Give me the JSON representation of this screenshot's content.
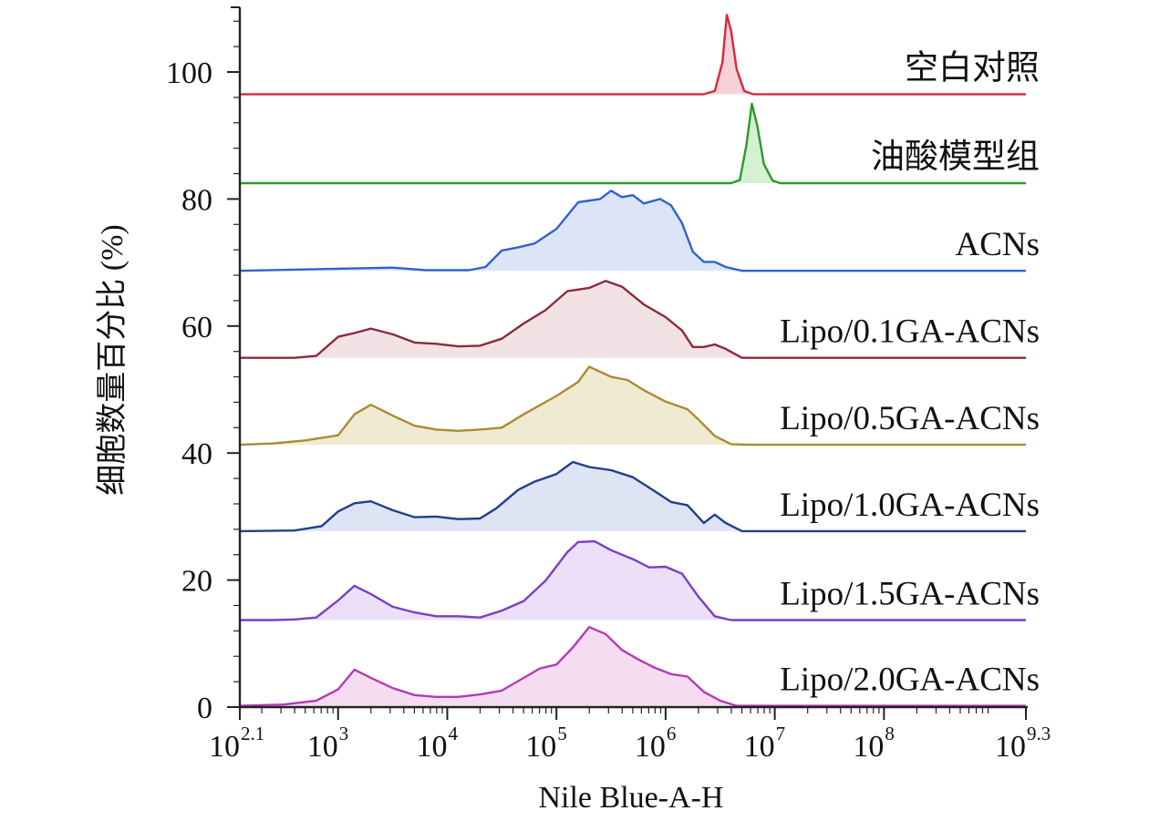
{
  "chart_data": {
    "type": "area",
    "title": "",
    "xlabel": "Nile Blue-A-H",
    "ylabel": "细胞数量百分比 (%)",
    "x_scale": "log10",
    "xlim": [
      2.1,
      9.3
    ],
    "ylim": [
      0,
      110
    ],
    "x_ticks": [
      {
        "base": "10",
        "exp": "2.1",
        "value": 2.1
      },
      {
        "base": "10",
        "exp": "3",
        "value": 3
      },
      {
        "base": "10",
        "exp": "4",
        "value": 4
      },
      {
        "base": "10",
        "exp": "5",
        "value": 5
      },
      {
        "base": "10",
        "exp": "6",
        "value": 6
      },
      {
        "base": "10",
        "exp": "7",
        "value": 7
      },
      {
        "base": "10",
        "exp": "8",
        "value": 8
      },
      {
        "base": "10",
        "exp": "9.3",
        "value": 9.3
      }
    ],
    "y_ticks": [
      0,
      20,
      40,
      60,
      80,
      100
    ],
    "grid": false,
    "legend": "series labels placed at right of each trace",
    "series": [
      {
        "name": "空白对照",
        "color": "#d6293c",
        "fill": "#f6c9d1",
        "baseline": 96.5,
        "points": [
          [
            2.1,
            0
          ],
          [
            6.35,
            0
          ],
          [
            6.45,
            0.5
          ],
          [
            6.52,
            5
          ],
          [
            6.56,
            12.5
          ],
          [
            6.6,
            10
          ],
          [
            6.65,
            4
          ],
          [
            6.72,
            0.5
          ],
          [
            6.8,
            0
          ],
          [
            9.3,
            0
          ]
        ]
      },
      {
        "name": "油酸模型组",
        "color": "#2b9a2b",
        "fill": "#cdeecb",
        "baseline": 82.5,
        "points": [
          [
            2.1,
            0
          ],
          [
            6.6,
            0
          ],
          [
            6.68,
            0.5
          ],
          [
            6.74,
            6
          ],
          [
            6.79,
            12.5
          ],
          [
            6.84,
            9
          ],
          [
            6.9,
            3
          ],
          [
            6.98,
            0.4
          ],
          [
            7.05,
            0
          ],
          [
            9.3,
            0
          ]
        ]
      },
      {
        "name": "ACNs",
        "color": "#2e63cf",
        "fill": "#d6e1f6",
        "baseline": 68.7,
        "points": [
          [
            2.1,
            0
          ],
          [
            3.2,
            0.4
          ],
          [
            3.5,
            0.5
          ],
          [
            3.8,
            0.1
          ],
          [
            4.2,
            0.1
          ],
          [
            4.35,
            0.6
          ],
          [
            4.5,
            3.2
          ],
          [
            4.65,
            3.7
          ],
          [
            4.8,
            4.3
          ],
          [
            5.0,
            6.6
          ],
          [
            5.2,
            10.8
          ],
          [
            5.4,
            11.3
          ],
          [
            5.5,
            12.6
          ],
          [
            5.6,
            11.6
          ],
          [
            5.7,
            11.9
          ],
          [
            5.8,
            10.6
          ],
          [
            5.95,
            11.3
          ],
          [
            6.05,
            10.3
          ],
          [
            6.15,
            7.5
          ],
          [
            6.25,
            3.0
          ],
          [
            6.35,
            1.4
          ],
          [
            6.45,
            1.4
          ],
          [
            6.55,
            0.6
          ],
          [
            6.7,
            0
          ],
          [
            9.3,
            0
          ]
        ]
      },
      {
        "name": "Lipo/0.1GA-ACNs",
        "color": "#8c2a3a",
        "fill": "#f0dde0",
        "baseline": 55.0,
        "points": [
          [
            2.1,
            0
          ],
          [
            2.6,
            0
          ],
          [
            2.8,
            0.3
          ],
          [
            3.0,
            3.3
          ],
          [
            3.15,
            3.9
          ],
          [
            3.3,
            4.6
          ],
          [
            3.5,
            3.7
          ],
          [
            3.7,
            2.4
          ],
          [
            3.9,
            2.2
          ],
          [
            4.1,
            1.8
          ],
          [
            4.3,
            1.9
          ],
          [
            4.5,
            3.0
          ],
          [
            4.7,
            5.4
          ],
          [
            4.9,
            7.5
          ],
          [
            5.1,
            10.5
          ],
          [
            5.3,
            11.0
          ],
          [
            5.45,
            12.1
          ],
          [
            5.6,
            11.2
          ],
          [
            5.8,
            8.4
          ],
          [
            6.0,
            6.4
          ],
          [
            6.15,
            4.3
          ],
          [
            6.25,
            1.7
          ],
          [
            6.35,
            1.7
          ],
          [
            6.45,
            2.1
          ],
          [
            6.55,
            1.4
          ],
          [
            6.7,
            0
          ],
          [
            9.3,
            0
          ]
        ]
      },
      {
        "name": "Lipo/0.5GA-ACNs",
        "color": "#a98c33",
        "fill": "#efe6cb",
        "baseline": 41.3,
        "points": [
          [
            2.1,
            0
          ],
          [
            2.4,
            0.2
          ],
          [
            2.7,
            0.7
          ],
          [
            3.0,
            1.5
          ],
          [
            3.15,
            4.8
          ],
          [
            3.3,
            6.3
          ],
          [
            3.5,
            4.6
          ],
          [
            3.7,
            3.0
          ],
          [
            3.9,
            2.4
          ],
          [
            4.1,
            2.2
          ],
          [
            4.3,
            2.4
          ],
          [
            4.5,
            2.7
          ],
          [
            4.7,
            4.8
          ],
          [
            5.0,
            7.7
          ],
          [
            5.2,
            9.9
          ],
          [
            5.3,
            12.3
          ],
          [
            5.4,
            11.5
          ],
          [
            5.5,
            10.7
          ],
          [
            5.65,
            10.2
          ],
          [
            5.8,
            8.6
          ],
          [
            6.0,
            6.8
          ],
          [
            6.2,
            5.6
          ],
          [
            6.3,
            4.0
          ],
          [
            6.45,
            1.4
          ],
          [
            6.6,
            0.1
          ],
          [
            6.75,
            0
          ],
          [
            9.3,
            0
          ]
        ]
      },
      {
        "name": "Lipo/1.0GA-ACNs",
        "color": "#1f3f8f",
        "fill": "#d7e0f2",
        "baseline": 27.7,
        "points": [
          [
            2.1,
            0
          ],
          [
            2.6,
            0.1
          ],
          [
            2.85,
            0.8
          ],
          [
            3.0,
            3.1
          ],
          [
            3.15,
            4.4
          ],
          [
            3.3,
            4.7
          ],
          [
            3.5,
            3.3
          ],
          [
            3.7,
            2.2
          ],
          [
            3.9,
            2.3
          ],
          [
            4.1,
            1.9
          ],
          [
            4.3,
            2.0
          ],
          [
            4.45,
            3.6
          ],
          [
            4.65,
            6.5
          ],
          [
            4.8,
            7.8
          ],
          [
            5.0,
            9.0
          ],
          [
            5.15,
            10.9
          ],
          [
            5.3,
            10.1
          ],
          [
            5.5,
            9.6
          ],
          [
            5.7,
            8.5
          ],
          [
            5.9,
            6.3
          ],
          [
            6.05,
            4.6
          ],
          [
            6.2,
            4.1
          ],
          [
            6.35,
            1.3
          ],
          [
            6.45,
            2.6
          ],
          [
            6.55,
            1.3
          ],
          [
            6.7,
            0
          ],
          [
            9.3,
            0
          ]
        ]
      },
      {
        "name": "Lipo/1.5GA-ACNs",
        "color": "#7a3fc4",
        "fill": "#e9d9f6",
        "baseline": 13.7,
        "points": [
          [
            2.1,
            0
          ],
          [
            2.4,
            0
          ],
          [
            2.6,
            0.1
          ],
          [
            2.8,
            0.4
          ],
          [
            3.0,
            3.1
          ],
          [
            3.15,
            5.4
          ],
          [
            3.3,
            4.1
          ],
          [
            3.5,
            2.1
          ],
          [
            3.7,
            1.2
          ],
          [
            3.9,
            0.6
          ],
          [
            4.1,
            0.6
          ],
          [
            4.3,
            0.4
          ],
          [
            4.5,
            1.5
          ],
          [
            4.7,
            3.0
          ],
          [
            4.9,
            6.2
          ],
          [
            5.1,
            10.7
          ],
          [
            5.2,
            12.3
          ],
          [
            5.35,
            12.4
          ],
          [
            5.5,
            11.0
          ],
          [
            5.7,
            9.6
          ],
          [
            5.85,
            8.3
          ],
          [
            6.0,
            8.4
          ],
          [
            6.15,
            7.3
          ],
          [
            6.3,
            3.7
          ],
          [
            6.45,
            0.6
          ],
          [
            6.6,
            0
          ],
          [
            9.3,
            0
          ]
        ]
      },
      {
        "name": "Lipo/2.0GA-ACNs",
        "color": "#b53ab5",
        "fill": "#f5d6ef",
        "baseline": 0.2,
        "points": [
          [
            2.1,
            0
          ],
          [
            2.5,
            0.2
          ],
          [
            2.8,
            0.8
          ],
          [
            3.0,
            2.6
          ],
          [
            3.15,
            5.7
          ],
          [
            3.3,
            4.4
          ],
          [
            3.5,
            2.8
          ],
          [
            3.7,
            1.7
          ],
          [
            3.9,
            1.4
          ],
          [
            4.1,
            1.4
          ],
          [
            4.3,
            1.8
          ],
          [
            4.5,
            2.4
          ],
          [
            4.7,
            4.4
          ],
          [
            4.85,
            5.9
          ],
          [
            5.0,
            6.5
          ],
          [
            5.15,
            9.2
          ],
          [
            5.3,
            12.4
          ],
          [
            5.45,
            11.3
          ],
          [
            5.6,
            8.8
          ],
          [
            5.75,
            7.3
          ],
          [
            5.9,
            6.0
          ],
          [
            6.05,
            5.0
          ],
          [
            6.2,
            4.6
          ],
          [
            6.35,
            2.2
          ],
          [
            6.5,
            0.8
          ],
          [
            6.65,
            0
          ],
          [
            9.3,
            0
          ]
        ]
      }
    ]
  }
}
